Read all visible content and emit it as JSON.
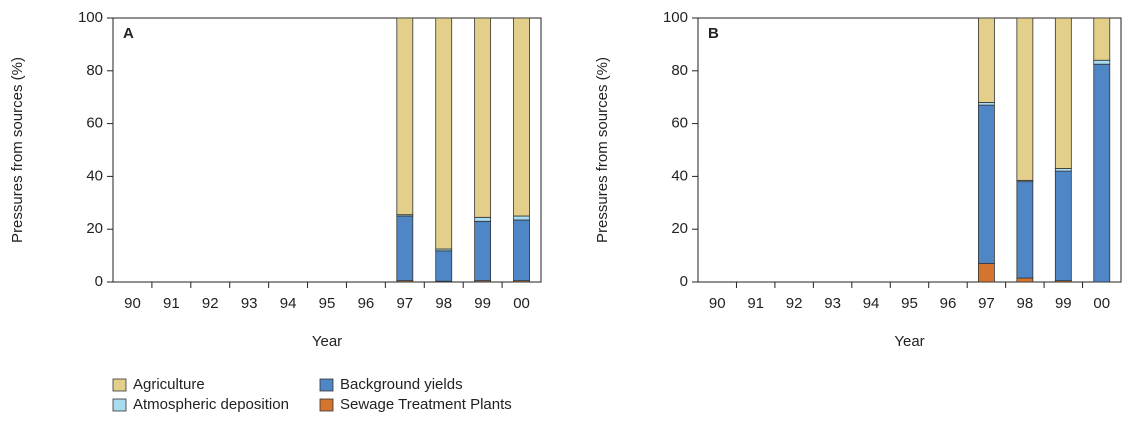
{
  "chart_data": [
    {
      "type": "bar",
      "stacked": true,
      "panel": "A",
      "xlabel": "Year",
      "ylabel": "Pressures from sources (%)",
      "categories": [
        "90",
        "91",
        "92",
        "93",
        "94",
        "95",
        "96",
        "97",
        "98",
        "99",
        "00"
      ],
      "ylim": [
        0,
        100
      ],
      "yticks": [
        0,
        20,
        40,
        60,
        80,
        100
      ],
      "series": [
        {
          "name": "Sewage Treatment Plants",
          "color": "#d4742f",
          "values": [
            null,
            null,
            null,
            null,
            null,
            null,
            null,
            0.5,
            0.3,
            0.5,
            0.5
          ]
        },
        {
          "name": "Background yields",
          "color": "#4f86c6",
          "values": [
            null,
            null,
            null,
            null,
            null,
            null,
            null,
            24.5,
            11.5,
            22.5,
            23
          ]
        },
        {
          "name": "Atmospheric deposition",
          "color": "#a9dcef",
          "values": [
            null,
            null,
            null,
            null,
            null,
            null,
            null,
            0.5,
            0.7,
            1.5,
            1.5
          ]
        },
        {
          "name": "Agriculture",
          "color": "#e3cf8a",
          "values": [
            null,
            null,
            null,
            null,
            null,
            null,
            null,
            74.5,
            87.5,
            75.5,
            75
          ]
        }
      ]
    },
    {
      "type": "bar",
      "stacked": true,
      "panel": "B",
      "xlabel": "Year",
      "ylabel": "Pressures from sources (%)",
      "categories": [
        "90",
        "91",
        "92",
        "93",
        "94",
        "95",
        "96",
        "97",
        "98",
        "99",
        "00"
      ],
      "ylim": [
        0,
        100
      ],
      "yticks": [
        0,
        20,
        40,
        60,
        80,
        100
      ],
      "series": [
        {
          "name": "Sewage Treatment Plants",
          "color": "#d4742f",
          "values": [
            null,
            null,
            null,
            null,
            null,
            null,
            null,
            7,
            1.5,
            0.5,
            0
          ]
        },
        {
          "name": "Background yields",
          "color": "#4f86c6",
          "values": [
            null,
            null,
            null,
            null,
            null,
            null,
            null,
            60,
            36.5,
            41.5,
            82.5
          ]
        },
        {
          "name": "Atmospheric deposition",
          "color": "#a9dcef",
          "values": [
            null,
            null,
            null,
            null,
            null,
            null,
            null,
            1,
            0.5,
            1,
            1.5
          ]
        },
        {
          "name": "Agriculture",
          "color": "#e3cf8a",
          "values": [
            null,
            null,
            null,
            null,
            null,
            null,
            null,
            32,
            61.5,
            57,
            16
          ]
        }
      ]
    }
  ]
}
